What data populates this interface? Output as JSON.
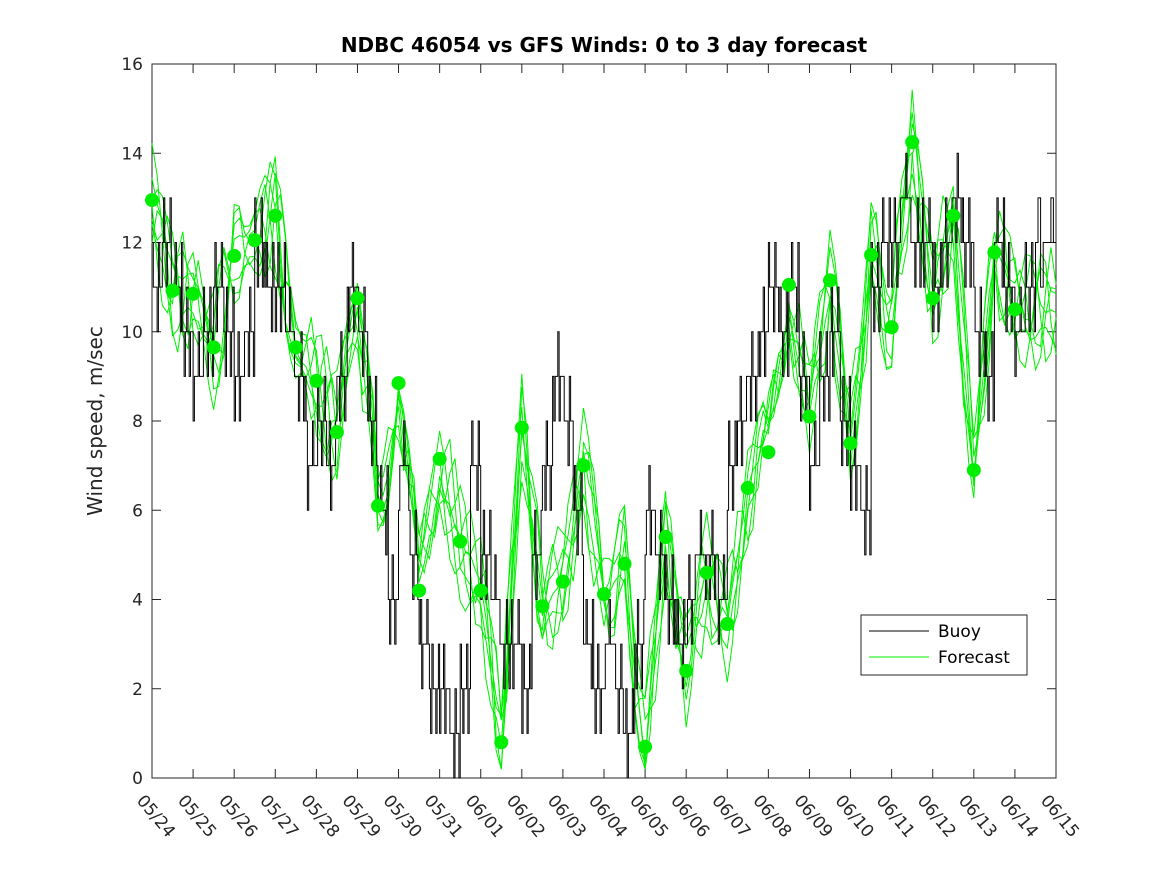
{
  "chart_data": {
    "type": "line",
    "title": "NDBC 46054 vs GFS Winds: 0 to 3 day forecast",
    "xlabel": "",
    "ylabel": "Wind speed, m/sec",
    "ylim": [
      0,
      16
    ],
    "yticks": [
      0,
      2,
      4,
      6,
      8,
      10,
      12,
      14,
      16
    ],
    "x_tick_labels": [
      "05/24",
      "05/25",
      "05/26",
      "05/27",
      "05/28",
      "05/29",
      "05/30",
      "05/31",
      "06/01",
      "06/02",
      "06/03",
      "06/04",
      "06/05",
      "06/06",
      "06/07",
      "06/08",
      "06/09",
      "06/10",
      "06/11",
      "06/12",
      "06/13",
      "06/14",
      "06/15"
    ],
    "x_range_days": [
      0,
      22
    ],
    "grid": false,
    "legend": {
      "position": "lower-right",
      "entries": [
        "Buoy",
        "Forecast"
      ]
    },
    "colors": {
      "buoy": "#000000",
      "forecast": "#00ee00"
    },
    "series": [
      {
        "name": "Buoy",
        "x_days": [
          0,
          0.25,
          0.5,
          0.75,
          1,
          1.25,
          1.5,
          1.75,
          2,
          2.25,
          2.5,
          2.75,
          3,
          3.25,
          3.5,
          3.75,
          4,
          4.25,
          4.5,
          4.75,
          5,
          5.25,
          5.5,
          5.75,
          6,
          6.25,
          6.5,
          6.75,
          7,
          7.25,
          7.5,
          7.75,
          8,
          8.25,
          8.5,
          8.75,
          9,
          9.25,
          9.5,
          9.75,
          10,
          10.25,
          10.5,
          10.75,
          11,
          11.25,
          11.5,
          11.75,
          12,
          12.25,
          12.5,
          12.75,
          13,
          13.25,
          13.5,
          13.75,
          14,
          14.25,
          14.5,
          14.75,
          15,
          15.25,
          15.5,
          15.75,
          16,
          16.25,
          16.5,
          16.75,
          17,
          17.25,
          17.5,
          17.75,
          18,
          18.25,
          18.5,
          18.75,
          19,
          19.25,
          19.5,
          19.75,
          20,
          20.25,
          20.5,
          20.75,
          21,
          21.25,
          21.5
        ],
        "values": [
          11,
          12,
          11,
          10,
          9,
          10,
          11,
          10,
          9,
          10,
          12,
          11,
          11,
          10,
          9,
          7,
          8,
          7,
          9,
          11,
          10,
          8,
          6,
          4,
          7,
          5,
          3,
          2,
          2,
          1,
          2,
          7,
          5,
          4,
          3,
          3,
          2,
          5,
          7,
          9,
          8,
          6,
          3,
          2,
          3,
          2,
          1,
          3,
          6,
          5,
          4,
          3,
          4,
          5,
          5,
          4,
          7,
          8,
          9,
          10,
          11,
          10,
          11,
          9,
          7,
          9,
          10,
          8,
          7,
          6,
          11,
          12,
          12,
          13,
          12,
          12,
          11,
          12,
          13,
          12,
          10,
          9,
          12,
          11,
          10,
          11,
          12
        ]
      },
      {
        "name": "Forecast",
        "x_days": [
          0,
          0.5,
          1,
          1.5,
          2,
          2.5,
          3,
          3.5,
          4,
          4.5,
          5,
          5.5,
          6,
          6.5,
          7,
          7.5,
          8,
          8.5,
          9,
          9.5,
          10,
          10.5,
          11,
          11.5,
          12,
          12.5,
          13,
          13.5,
          14,
          14.5,
          15,
          15.5,
          16,
          16.5,
          17,
          17.5,
          18,
          18.5,
          19,
          19.5,
          20,
          20.5,
          21
        ],
        "values": [
          12.95,
          10.92,
          10.85,
          9.65,
          11.7,
          12.05,
          12.6,
          9.65,
          8.9,
          7.75,
          10.75,
          6.1,
          8.85,
          4.2,
          7.15,
          5.3,
          4.2,
          0.8,
          7.85,
          3.85,
          4.4,
          7.0,
          4.12,
          4.8,
          0.7,
          5.4,
          2.4,
          4.6,
          3.45,
          6.5,
          7.3,
          11.05,
          8.1,
          11.15,
          7.5,
          11.72,
          10.1,
          14.25,
          10.75,
          12.6,
          6.9,
          11.78,
          10.5
        ]
      }
    ]
  }
}
